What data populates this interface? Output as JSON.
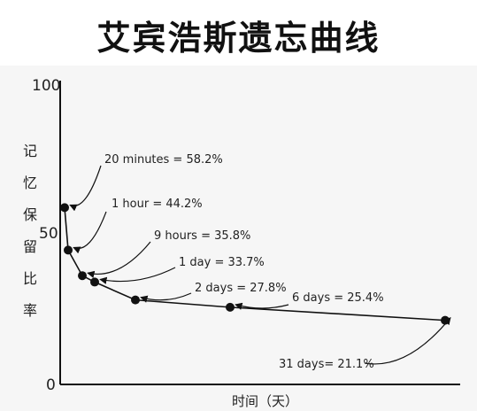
{
  "chart_data": {
    "type": "line",
    "title": "艾宾浩斯遗忘曲线",
    "ylabel": "记忆保留比率",
    "xlabel": "时间（天）",
    "ylim": [
      0,
      100
    ],
    "yticks": [
      "100",
      "50",
      "0"
    ],
    "points": [
      {
        "x": 0,
        "y": 58.2,
        "label": "20 minutes = 58.2%"
      },
      {
        "x": 0.0417,
        "y": 44.2,
        "label": "1 hour = 44.2%"
      },
      {
        "x": 0.375,
        "y": 35.8,
        "label": "9 hours = 35.8%"
      },
      {
        "x": 1,
        "y": 33.7,
        "label": "1 day = 33.7%"
      },
      {
        "x": 2,
        "y": 27.8,
        "label": "2 days = 27.8%"
      },
      {
        "x": 6,
        "y": 25.4,
        "label": "6 days = 25.4%"
      },
      {
        "x": 31,
        "y": 21.1,
        "label": "31 days= 21.1%"
      }
    ],
    "colors": {
      "line": "#111111",
      "marker": "#111111",
      "axis": "#111111"
    }
  }
}
